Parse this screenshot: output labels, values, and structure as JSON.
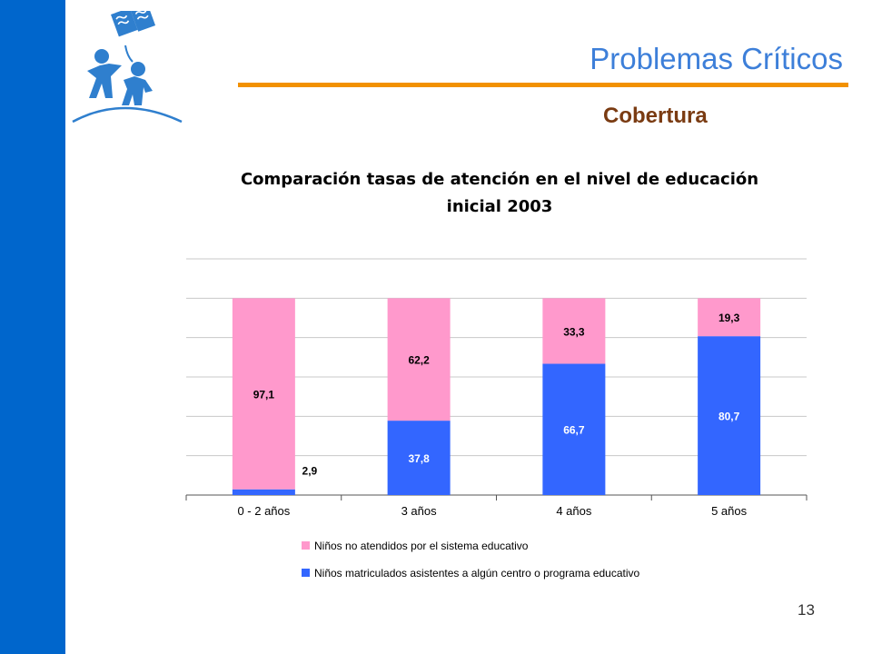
{
  "slide": {
    "title": "Problemas Críticos",
    "subtitle": "Cobertura",
    "page_number": "13",
    "colors": {
      "sidebar": "#0066cc",
      "title": "#3d7fd9",
      "rule": "#f29100",
      "subtitle": "#7a3b12"
    }
  },
  "chart_data": {
    "type": "bar",
    "stacked": true,
    "title_lines": [
      "Comparación tasas de atención en el nivel de educación",
      "inicial 2003"
    ],
    "categories": [
      "0 - 2 años",
      "3 años",
      "4 años",
      "5 años"
    ],
    "series": [
      {
        "name": "Niños matriculados asistentes a algún centro o programa educativo",
        "color": "#3366ff",
        "values": [
          2.9,
          37.8,
          66.7,
          80.7
        ],
        "labels": [
          "2,9",
          "37,8",
          "66,7",
          "80,7"
        ]
      },
      {
        "name": "Niños no atendidos por el sistema educativo",
        "color": "#ff99cc",
        "values": [
          97.1,
          62.2,
          33.3,
          19.3
        ],
        "labels": [
          "97,1",
          "62,2",
          "33,3",
          "19,3"
        ]
      }
    ],
    "legend_order": [
      1,
      0
    ],
    "ylim": [
      0,
      120
    ],
    "grid": true,
    "legend_position": "bottom"
  }
}
